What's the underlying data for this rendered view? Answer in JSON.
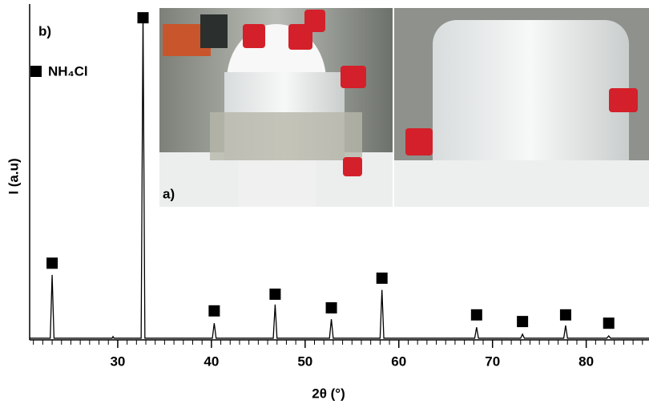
{
  "chart_data": {
    "type": "line",
    "panel_label": "b)",
    "inset_label": "a)",
    "ylabel": "I (a.u)",
    "xlabel": "2θ (°)",
    "legend_label": "NH₄Cl",
    "x": [
      20.6,
      22.8,
      23.0,
      23.2,
      29.4,
      29.5,
      29.6,
      32.5,
      32.7,
      32.9,
      40.1,
      40.3,
      40.5,
      46.6,
      46.8,
      47.0,
      52.6,
      52.8,
      53.0,
      58.0,
      58.2,
      58.4,
      68.1,
      68.3,
      68.5,
      73.0,
      73.2,
      73.4,
      77.6,
      77.8,
      78.0,
      82.2,
      82.4,
      82.6,
      86.7
    ],
    "series": [
      {
        "color": "#000000",
        "values": [
          0.5,
          0.5,
          19.5,
          0.5,
          0.5,
          1.0,
          0.5,
          0.5,
          98,
          0.5,
          0.5,
          5,
          0.5,
          0.5,
          10.6,
          0.5,
          0.5,
          6.2,
          0.5,
          0.5,
          15,
          0.5,
          0.5,
          3.8,
          0.5,
          0.5,
          1.7,
          0.5,
          0.5,
          4.3,
          0.5,
          0.5,
          1.2,
          0.5,
          0.5
        ]
      }
    ],
    "markers": {
      "color": "#000000",
      "x": [
        23.0,
        32.7,
        40.3,
        46.8,
        52.8,
        58.2,
        68.3,
        73.2,
        77.8,
        82.4
      ],
      "values": [
        23,
        96.6,
        8.7,
        13.7,
        9.6,
        18.5,
        7.5,
        5.5,
        7.5,
        5
      ]
    },
    "xlim": [
      20.6,
      86.7
    ],
    "ylim": [
      0,
      100
    ],
    "xticks": [
      30,
      40,
      50,
      60,
      70,
      80
    ],
    "xminor_ticks": [
      21,
      22,
      23,
      24,
      25,
      26,
      27,
      28,
      29,
      31,
      32,
      33,
      34,
      35,
      36,
      37,
      38,
      39,
      41,
      42,
      43,
      44,
      45,
      46,
      47,
      48,
      49,
      51,
      52,
      53,
      54,
      55,
      56,
      57,
      58,
      59,
      61,
      62,
      63,
      64,
      65,
      66,
      67,
      68,
      69,
      71,
      72,
      73,
      74,
      75,
      76,
      77,
      78,
      79,
      81,
      82,
      83,
      84,
      85,
      86
    ]
  }
}
